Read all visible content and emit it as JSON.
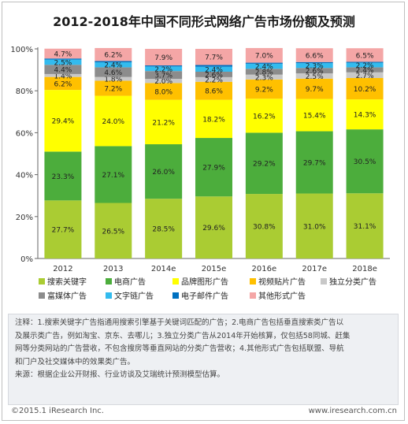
{
  "title": "2012-2018年中国不同形式网络广告市场份额及预测",
  "chart_data": {
    "type": "bar",
    "stacked": true,
    "categories": [
      "2012",
      "2013",
      "2014e",
      "2015e",
      "2016e",
      "2017e",
      "2018e"
    ],
    "y_ticks": [
      "0%",
      "20%",
      "40%",
      "60%",
      "80%",
      "100%"
    ],
    "ylim": [
      0,
      100
    ],
    "legend_position": "bottom",
    "series": [
      {
        "name": "搜索关键字",
        "color": "#aacc33",
        "values": [
          27.7,
          26.5,
          28.5,
          29.6,
          30.8,
          31.0,
          31.1
        ]
      },
      {
        "name": "电商广告",
        "color": "#4cad3c",
        "values": [
          23.3,
          27.1,
          26.0,
          27.9,
          29.2,
          29.7,
          30.5
        ]
      },
      {
        "name": "品牌图形广告",
        "color": "#ffff00",
        "values": [
          29.4,
          24.0,
          21.2,
          18.2,
          16.2,
          15.4,
          14.3
        ]
      },
      {
        "name": "视频贴片广告",
        "color": "#ffc000",
        "values": [
          6.2,
          7.2,
          8.0,
          8.6,
          9.2,
          9.7,
          10.2
        ]
      },
      {
        "name": "独立分类广告",
        "color": "#c8c8c8",
        "values": [
          1.4,
          1.8,
          2.0,
          2.2,
          2.3,
          2.5,
          2.7
        ]
      },
      {
        "name": "富媒体广告",
        "color": "#8c8c8c",
        "values": [
          4.4,
          4.6,
          3.7,
          2.6,
          2.8,
          2.6,
          2.4
        ]
      },
      {
        "name": "文字链广告",
        "color": "#33bbee",
        "values": [
          2.5,
          2.4,
          2.2,
          2.4,
          2.4,
          2.3,
          2.2
        ]
      },
      {
        "name": "电子邮件广告",
        "color": "#0070c0",
        "values": [
          0.5,
          0.6,
          0.5,
          0.8,
          0.5,
          0.5,
          0.4
        ]
      },
      {
        "name": "其他形式广告",
        "color": "#f4a6a6",
        "values": [
          4.7,
          6.2,
          7.9,
          7.7,
          7.0,
          6.6,
          6.5
        ]
      }
    ],
    "label_series": [
      0,
      1,
      2,
      3,
      4,
      5,
      6,
      8
    ],
    "label_suffix": "%",
    "grid": false
  },
  "notes": {
    "line1": "注释：1.搜索关键字广告指通用搜索引擎基于关键词匹配的广告；2.电商广告包括垂直搜索类广告以",
    "line2": "及展示类广告，例如淘宝、京东、去哪儿；3.独立分类广告从2014年开始核算，仅包括58同城、赶集",
    "line3": "网等分类网站的广告营收，不包含搜房等垂直网站的分类广告营收；4.其他形式广告包括联盟、导航",
    "line4": "和门户及社交媒体中的效果类广告。",
    "source": "来源：根据企业公开财报、行业访谈及艾瑞统计预测模型估算。"
  },
  "footer": {
    "copyright": "©2015.1 iResearch Inc.",
    "website": "www.iresearch.com.cn"
  }
}
